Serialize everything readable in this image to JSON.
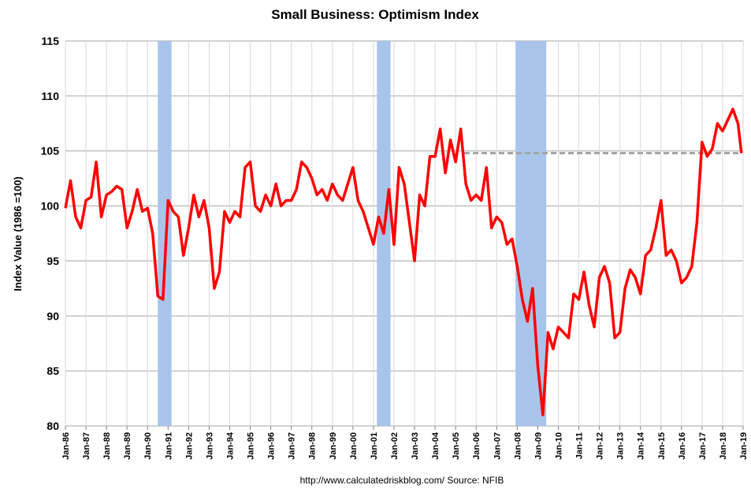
{
  "chart_data": {
    "type": "line",
    "title": "Small Business: Optimism Index",
    "y_label": "Index Value (1986 =100)",
    "source": "http://www.calculatedriskblog.com/  Source: NFIB",
    "x": [
      "Jan-86",
      "Apr-86",
      "Jul-86",
      "Oct-86",
      "Jan-87",
      "Apr-87",
      "Jul-87",
      "Oct-87",
      "Jan-88",
      "Apr-88",
      "Jul-88",
      "Oct-88",
      "Jan-89",
      "Apr-89",
      "Jul-89",
      "Oct-89",
      "Jan-90",
      "Apr-90",
      "Jul-90",
      "Oct-90",
      "Jan-91",
      "Apr-91",
      "Jul-91",
      "Oct-91",
      "Jan-92",
      "Apr-92",
      "Jul-92",
      "Oct-92",
      "Jan-93",
      "Apr-93",
      "Jul-93",
      "Oct-93",
      "Jan-94",
      "Apr-94",
      "Jul-94",
      "Oct-94",
      "Jan-95",
      "Apr-95",
      "Jul-95",
      "Oct-95",
      "Jan-96",
      "Apr-96",
      "Jul-96",
      "Oct-96",
      "Jan-97",
      "Apr-97",
      "Jul-97",
      "Oct-97",
      "Jan-98",
      "Apr-98",
      "Jul-98",
      "Oct-98",
      "Jan-99",
      "Apr-99",
      "Jul-99",
      "Oct-99",
      "Jan-00",
      "Apr-00",
      "Jul-00",
      "Oct-00",
      "Jan-01",
      "Apr-01",
      "Jul-01",
      "Oct-01",
      "Jan-02",
      "Apr-02",
      "Jul-02",
      "Oct-02",
      "Jan-03",
      "Apr-03",
      "Jul-03",
      "Oct-03",
      "Jan-04",
      "Apr-04",
      "Jul-04",
      "Oct-04",
      "Jan-05",
      "Apr-05",
      "Jul-05",
      "Oct-05",
      "Jan-06",
      "Apr-06",
      "Jul-06",
      "Oct-06",
      "Jan-07",
      "Apr-07",
      "Jul-07",
      "Oct-07",
      "Jan-08",
      "Apr-08",
      "Jul-08",
      "Oct-08",
      "Jan-09",
      "Apr-09",
      "Jul-09",
      "Oct-09",
      "Jan-10",
      "Apr-10",
      "Jul-10",
      "Oct-10",
      "Jan-11",
      "Apr-11",
      "Jul-11",
      "Oct-11",
      "Jan-12",
      "Apr-12",
      "Jul-12",
      "Oct-12",
      "Jan-13",
      "Apr-13",
      "Jul-13",
      "Oct-13",
      "Jan-14",
      "Apr-14",
      "Jul-14",
      "Oct-14",
      "Jan-15",
      "Apr-15",
      "Jul-15",
      "Oct-15",
      "Jan-16",
      "Apr-16",
      "Jul-16",
      "Oct-16",
      "Jan-17",
      "Apr-17",
      "Jul-17",
      "Oct-17",
      "Jan-18",
      "Apr-18",
      "Jul-18",
      "Oct-18",
      "Dec-18"
    ],
    "series": [
      {
        "name": "Optimism Index",
        "color": "#ff0000",
        "values": [
          99.8,
          102.3,
          99,
          98,
          100.5,
          100.8,
          104,
          99,
          101,
          101.3,
          101.8,
          101.5,
          98,
          99.5,
          101.5,
          99.5,
          99.8,
          97.5,
          91.8,
          91.5,
          100.5,
          99.5,
          99,
          95.5,
          98,
          101,
          99,
          100.5,
          98,
          92.5,
          94,
          99.5,
          98.5,
          99.5,
          99,
          103.5,
          104,
          100,
          99.5,
          101,
          100,
          102,
          100,
          100.5,
          100.5,
          101.5,
          104,
          103.5,
          102.5,
          101,
          101.5,
          100.5,
          102,
          101,
          100.5,
          102,
          103.5,
          100.5,
          99.5,
          98,
          96.5,
          99,
          97.5,
          101.5,
          96.5,
          103.5,
          102,
          98.5,
          95,
          101,
          100,
          104.5,
          104.5,
          107,
          103,
          106,
          104,
          107,
          102,
          100.5,
          101,
          100.5,
          103.5,
          98,
          99,
          98.5,
          96.5,
          97,
          94.5,
          91.5,
          89.5,
          92.5,
          85.5,
          81,
          88.5,
          87,
          89,
          88.5,
          88,
          92,
          91.5,
          94,
          91,
          89,
          93.5,
          94.5,
          93,
          88,
          88.5,
          92.5,
          94.2,
          93.5,
          92,
          95.5,
          96,
          98,
          100.5,
          95.5,
          96,
          95,
          93,
          93.5,
          94.5,
          98.5,
          105.8,
          104.5,
          105.2,
          107.5,
          106.8,
          107.8,
          108.8,
          107.5,
          104.8
        ]
      }
    ],
    "recessions": [
      [
        "Jul-90",
        "Mar-91"
      ],
      [
        "Mar-01",
        "Nov-01"
      ],
      [
        "Dec-07",
        "Jun-09"
      ]
    ],
    "recession_color": "#a9c4eb",
    "reference_line": {
      "value": 104.8,
      "from": "Jun-05",
      "to": "Dec-18",
      "color": "#a6a6a6"
    },
    "xlim": [
      "Jan-86",
      "Jan-19"
    ],
    "xticks": [
      "Jan-86",
      "Jan-87",
      "Jan-88",
      "Jan-89",
      "Jan-90",
      "Jan-91",
      "Jan-92",
      "Jan-93",
      "Jan-94",
      "Jan-95",
      "Jan-96",
      "Jan-97",
      "Jan-98",
      "Jan-99",
      "Jan-00",
      "Jan-01",
      "Jan-02",
      "Jan-03",
      "Jan-04",
      "Jan-05",
      "Jan-06",
      "Jan-07",
      "Jan-08",
      "Jan-09",
      "Jan-10",
      "Jan-11",
      "Jan-12",
      "Jan-13",
      "Jan-14",
      "Jan-15",
      "Jan-16",
      "Jan-17",
      "Jan-18",
      "Jan-19"
    ],
    "ylim": [
      80,
      115
    ],
    "yticks": [
      80,
      85,
      90,
      95,
      100,
      105,
      110,
      115
    ],
    "grid": true
  }
}
